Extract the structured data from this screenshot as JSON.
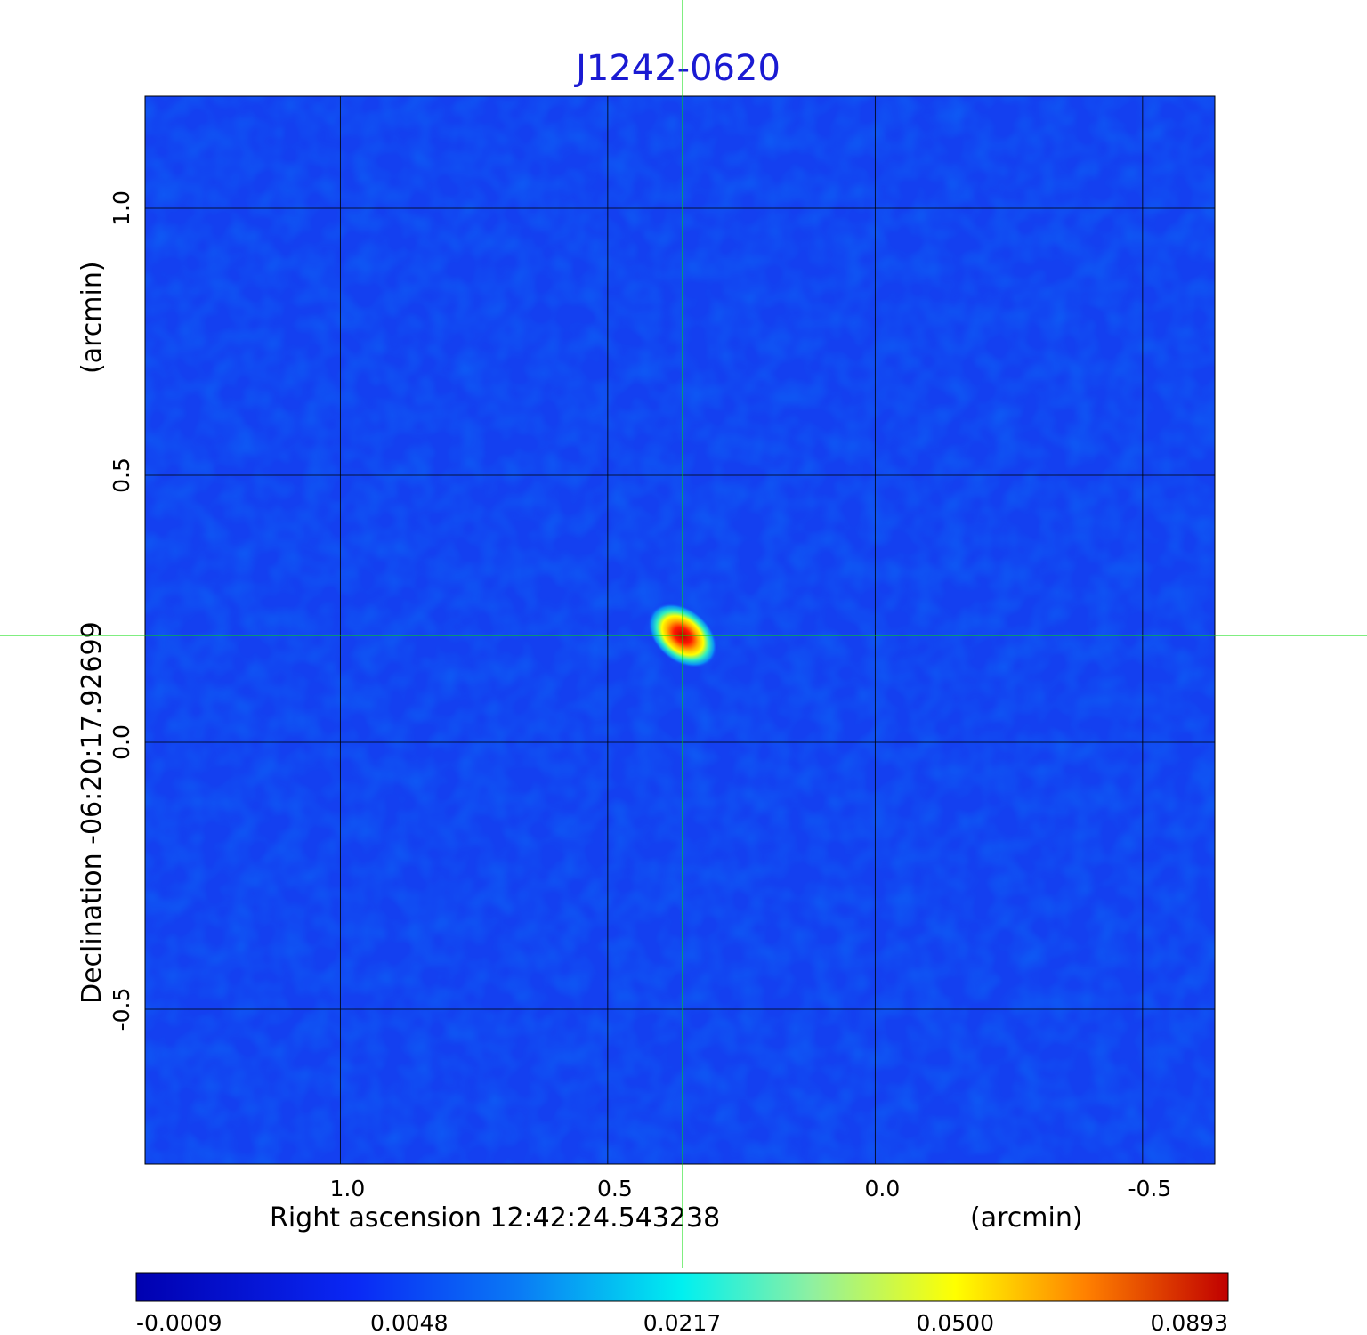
{
  "chart_data": {
    "type": "heatmap",
    "title": "J1242-0620",
    "xlabel": "Right ascension  12:42:24.543238",
    "xunit": "(arcmin)",
    "ylabel": "Declination  -06:20:17.92699",
    "yunit": "(arcmin)",
    "x_ticks": [
      "1.0",
      "0.5",
      "0.0",
      "-0.5"
    ],
    "y_ticks": [
      "1.0",
      "0.5",
      "0.0",
      "-0.5"
    ],
    "xlim": [
      1.365,
      -0.635
    ],
    "ylim": [
      -0.79,
      1.21
    ],
    "grid": true,
    "crosshair": {
      "x": 0.36,
      "y": 0.2,
      "color": "#00dd00"
    },
    "source_peak": {
      "x": 0.36,
      "y": 0.2,
      "value": 0.0893
    },
    "colormap": "jet",
    "colorbar_ticks": [
      "-0.0009",
      "0.0048",
      "0.0217",
      "0.0500",
      "0.0893"
    ],
    "colorbar_range": [
      -0.0009,
      0.0893
    ]
  }
}
